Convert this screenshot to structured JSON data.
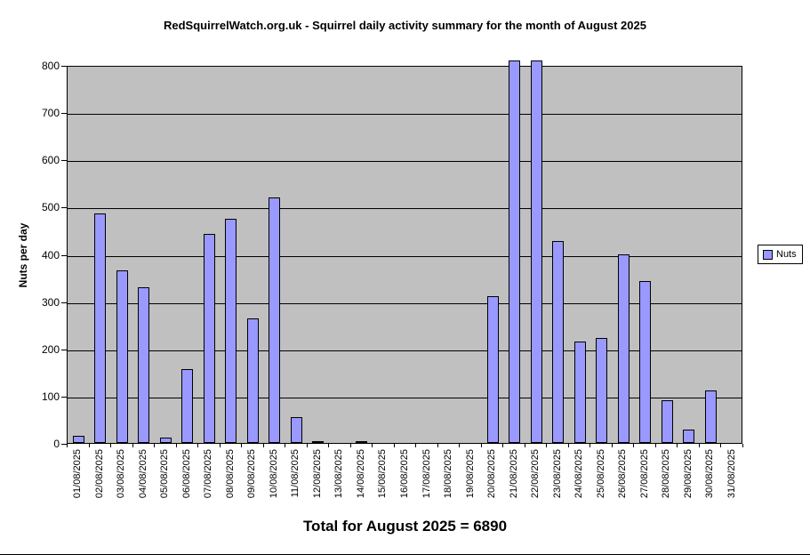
{
  "chart": {
    "title": "RedSquirrelWatch.org.uk - Squirrel daily activity summary for the month of August 2025",
    "footer": "Total for August 2025 = 6890",
    "legend": {
      "label": "Nuts"
    },
    "colors": {
      "bar": "#9999FF",
      "plot_background": "#C0C0C0",
      "gridline": "#000000",
      "text": "#000000",
      "chart_background": "#FFFFFF"
    }
  },
  "chart_data": {
    "type": "bar",
    "title": "RedSquirrelWatch.org.uk - Squirrel daily activity summary for the month of August 2025",
    "xlabel": "",
    "ylabel": "Nuts per day",
    "ylim": [
      0,
      800
    ],
    "yticks": [
      0,
      100,
      200,
      300,
      400,
      500,
      600,
      700,
      800
    ],
    "grid": true,
    "legend_position": "right",
    "xtick_label_rotation": 90,
    "series_name": "Nuts",
    "categories": [
      "01/08/2025",
      "02/08/2025",
      "03/08/2025",
      "04/08/2025",
      "05/08/2025",
      "06/08/2025",
      "07/08/2025",
      "08/08/2025",
      "09/08/2025",
      "10/08/2025",
      "11/08/2025",
      "12/08/2025",
      "13/08/2025",
      "14/08/2025",
      "15/08/2025",
      "16/08/2025",
      "17/08/2025",
      "18/08/2025",
      "19/08/2025",
      "20/08/2025",
      "21/08/2025",
      "22/08/2025",
      "23/08/2025",
      "24/08/2025",
      "25/08/2025",
      "26/08/2025",
      "27/08/2025",
      "28/08/2025",
      "29/08/2025",
      "30/08/2025",
      "31/08/2025"
    ],
    "values": [
      15,
      485,
      365,
      330,
      11,
      157,
      442,
      474,
      263,
      520,
      55,
      3,
      0,
      3,
      0,
      0,
      0,
      0,
      0,
      310,
      810,
      810,
      427,
      214,
      223,
      400,
      342,
      91,
      28,
      112,
      0
    ],
    "total": 6890,
    "total_label": "Total for August 2025 = 6890"
  }
}
